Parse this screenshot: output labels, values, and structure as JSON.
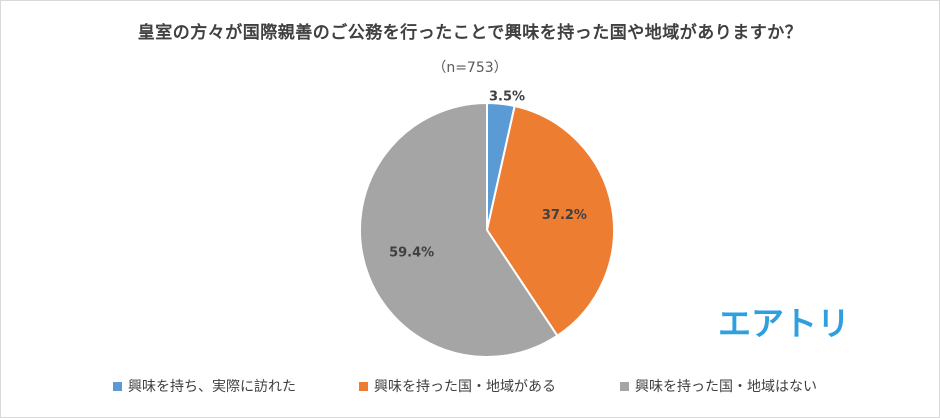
{
  "title": "皇室の方々が国際親善のご公務を行ったことで興味を持った国や地域がありますか？",
  "subtitle": "（n=753）",
  "logo_text": "エアトリ",
  "colors": {
    "blue": "#5b9bd5",
    "orange": "#ed7d31",
    "gray": "#a5a5a5",
    "logo": "#2f9fe0"
  },
  "chart_data": {
    "type": "pie",
    "title": "皇室の方々が国際親善のご公務を行ったことで興味を持った国や地域がありますか？",
    "subtitle": "（n=753）",
    "legend_position": "bottom",
    "slices": [
      {
        "label": "興味を持ち、実際に訪れた",
        "value": 3.5,
        "display": "3.5%",
        "color": "#5b9bd5"
      },
      {
        "label": "興味を持った国・地域がある",
        "value": 37.2,
        "display": "37.2%",
        "color": "#ed7d31"
      },
      {
        "label": "興味を持った国・地域はない",
        "value": 59.4,
        "display": "59.4%",
        "color": "#a5a5a5"
      }
    ]
  }
}
